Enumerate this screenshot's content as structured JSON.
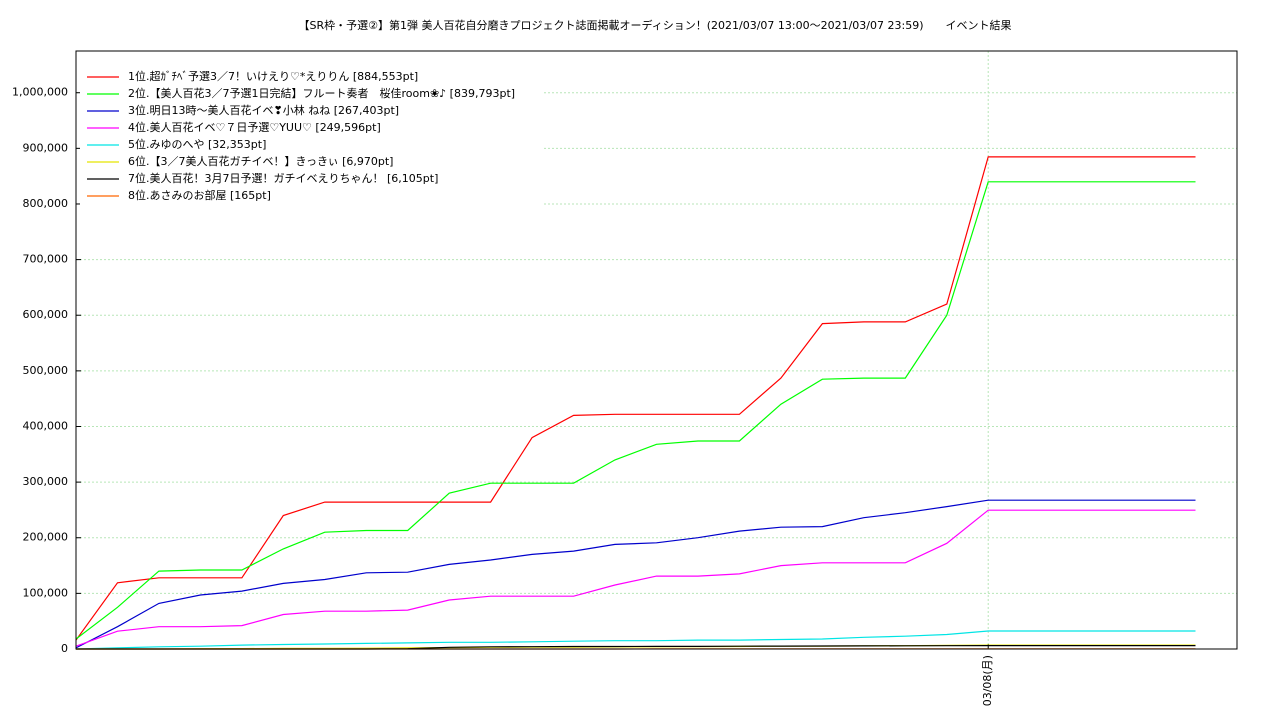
{
  "chart_data": {
    "type": "line",
    "title": "【SR枠・予選②】第1弾 美人百花自分磨きプロジェクト誌面掲載オーディション！(2021/03/07 13:00～2021/03/07 23:59)　　イベント結果",
    "x": [
      0,
      0.5,
      1,
      1.5,
      2,
      2.5,
      3,
      3.5,
      4,
      4.5,
      5,
      5.5,
      6,
      6.5,
      7,
      7.5,
      8,
      8.5,
      9,
      9.5,
      10,
      10.5,
      11,
      11.5,
      12,
      12.5,
      13,
      13.5
    ],
    "xlim": [
      0,
      14
    ],
    "xticks": [
      {
        "value": 11,
        "label": "03/08(月)"
      }
    ],
    "ylim": [
      0,
      1075000
    ],
    "yticks": [
      0,
      {
        "value": 100000,
        "label": "100,000"
      },
      {
        "value": 200000,
        "label": "200,000"
      },
      {
        "value": 300000,
        "label": "300,000"
      },
      {
        "value": 400000,
        "label": "400,000"
      },
      {
        "value": 500000,
        "label": "500,000"
      },
      {
        "value": 600000,
        "label": "600,000"
      },
      {
        "value": 700000,
        "label": "700,000"
      },
      {
        "value": 800000,
        "label": "800,000"
      },
      {
        "value": 900000,
        "label": "900,000"
      },
      {
        "value": 1000000,
        "label": "1,000,000"
      }
    ],
    "grid": true,
    "series": [
      {
        "name": "1位.超ｶﾞﾁﾍﾞ予選3／7！いけえり♡*えりりん [884,553pt]",
        "color": "#ff0000",
        "values": [
          16000,
          119000,
          128000,
          128000,
          128000,
          240000,
          264000,
          264000,
          264000,
          264000,
          264000,
          380000,
          420000,
          422000,
          422000,
          422000,
          422000,
          487000,
          585000,
          588000,
          588000,
          620000,
          884553,
          884553,
          884553,
          884553,
          884553,
          884553
        ]
      },
      {
        "name": "2位.【美人百花3／7予選1日完結】フルート奏者　桜佳room❀♪ [839,793pt]",
        "color": "#00ff00",
        "values": [
          18000,
          75000,
          140000,
          142000,
          142000,
          180000,
          210000,
          213000,
          213000,
          280000,
          298000,
          298000,
          298000,
          340000,
          368000,
          374000,
          374000,
          440000,
          485000,
          487000,
          487000,
          600000,
          839793,
          839793,
          839793,
          839793,
          839793,
          839793
        ]
      },
      {
        "name": "3位.明日13時～美人百花イベ❣小林 ねね [267,403pt]",
        "color": "#0000cc",
        "values": [
          2000,
          40000,
          82000,
          97000,
          104000,
          118000,
          125000,
          137000,
          138000,
          152000,
          160000,
          170000,
          176000,
          188000,
          191000,
          200000,
          212000,
          219000,
          220000,
          236000,
          245000,
          256000,
          267403,
          267403,
          267403,
          267403,
          267403,
          267403
        ]
      },
      {
        "name": "4位.美人百花イベ♡７日予選♡YUU♡ [249,596pt]",
        "color": "#ff00ff",
        "values": [
          5000,
          32000,
          40000,
          40000,
          42000,
          62000,
          68000,
          68000,
          70000,
          88000,
          95000,
          95000,
          95000,
          115000,
          131000,
          131000,
          135000,
          150000,
          155000,
          155000,
          155000,
          190000,
          249596,
          249596,
          249596,
          249596,
          249596,
          249596
        ]
      },
      {
        "name": "5位.みゆのへや [32,353pt]",
        "color": "#00e5e5",
        "values": [
          0,
          2000,
          4000,
          5000,
          7000,
          8000,
          9000,
          10000,
          11000,
          12000,
          12000,
          13000,
          14000,
          15000,
          15000,
          16000,
          16000,
          17000,
          18000,
          21000,
          23000,
          26000,
          32353,
          32353,
          32353,
          32353,
          32353,
          32353
        ]
      },
      {
        "name": "6位.【3／7美人百花ガチイベ！】きっきぃ [6,970pt]",
        "color": "#e5e500",
        "values": [
          0,
          0,
          0,
          500,
          800,
          1000,
          1200,
          1500,
          2000,
          2500,
          3000,
          3200,
          3500,
          3800,
          4000,
          4200,
          4500,
          5000,
          5200,
          5500,
          6000,
          6500,
          6970,
          6970,
          6970,
          6970,
          6970,
          6970
        ]
      },
      {
        "name": "7位.美人百花！3月7日予選！ガチイベえりちゃん！ [6,105pt]",
        "color": "#000000",
        "values": [
          0,
          0,
          0,
          0,
          0,
          0,
          0,
          0,
          500,
          3000,
          4000,
          4200,
          4500,
          4500,
          4600,
          4700,
          5000,
          5200,
          5400,
          5600,
          5800,
          6000,
          6105,
          6105,
          6105,
          6105,
          6105,
          6105
        ]
      },
      {
        "name": "8位.あさみのお部屋 [165pt]",
        "color": "#ff6600",
        "values": [
          0,
          0,
          0,
          0,
          0,
          0,
          0,
          0,
          0,
          0,
          50,
          50,
          80,
          80,
          100,
          100,
          120,
          120,
          140,
          140,
          150,
          160,
          165,
          165,
          165,
          165,
          165,
          165
        ]
      }
    ]
  }
}
